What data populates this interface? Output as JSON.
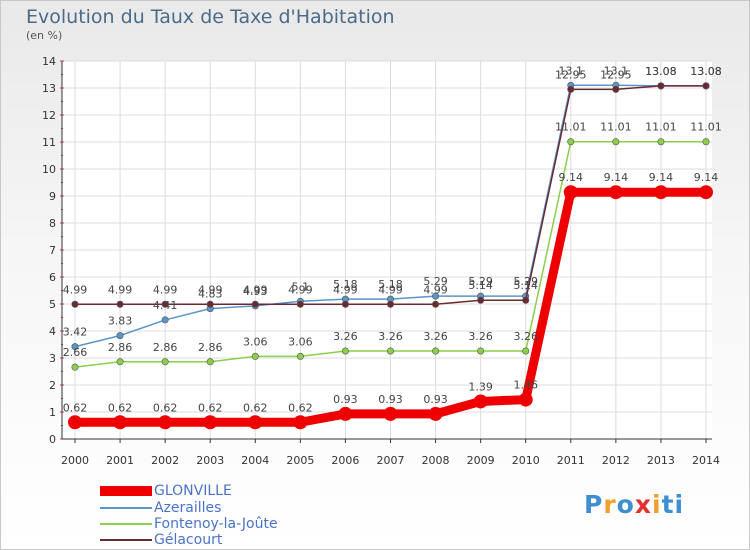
{
  "title": "Evolution du Taux de Taxe d'Habitation",
  "subtitle": "(en %)",
  "brand": {
    "letters": [
      "P",
      "r",
      "o",
      "x",
      "i",
      "t",
      "i"
    ],
    "colors": [
      "#3f8fd0",
      "#f0a030",
      "#3f8fd0",
      "#e03030",
      "#f0a030",
      "#3f8fd0",
      "#3f8fd0"
    ]
  },
  "chart_data": {
    "type": "line",
    "title": "Evolution du Taux de Taxe d'Habitation",
    "ylabel": "(en %)",
    "xlabel": "",
    "categories": [
      "2000",
      "2001",
      "2002",
      "2003",
      "2004",
      "2005",
      "2006",
      "2007",
      "2008",
      "2009",
      "2010",
      "2011",
      "2012",
      "2013",
      "2014"
    ],
    "ylim": [
      0,
      14
    ],
    "yticks": [
      "0",
      "1",
      "2",
      "3",
      "4",
      "5",
      "6",
      "7",
      "8",
      "9",
      "10",
      "11",
      "12",
      "13",
      "14"
    ],
    "grid": true,
    "legend_position": "bottom-left",
    "series": [
      {
        "name": "GLONVILLE",
        "color": "#ee0000",
        "values": [
          0.62,
          0.62,
          0.62,
          0.62,
          0.62,
          0.62,
          0.93,
          0.93,
          0.93,
          1.39,
          1.46,
          9.14,
          9.14,
          9.14,
          9.14
        ],
        "labels": [
          "0.62",
          "0.62",
          "0.62",
          "0.62",
          "0.62",
          "0.62",
          "0.93",
          "0.93",
          "0.93",
          "1.39",
          "1.46",
          "9.14",
          "9.14",
          "9.14",
          "9.14"
        ]
      },
      {
        "name": "Azerailles",
        "color": "#5b95c8",
        "values": [
          3.42,
          3.83,
          4.41,
          4.83,
          4.93,
          5.1,
          5.18,
          5.18,
          5.29,
          5.29,
          5.29,
          13.1,
          13.1,
          13.08,
          13.08
        ],
        "labels": [
          "3.42",
          "3.83",
          "4.41",
          "4.83",
          "4.93",
          "5.1",
          "5.18",
          "5.18",
          "5.29",
          "5.29",
          "5.29",
          "13.1",
          "13.1",
          "13.08",
          "13.08"
        ]
      },
      {
        "name": "Fontenoy-la-Joûte",
        "color": "#8ccf4a",
        "values": [
          2.66,
          2.86,
          2.86,
          2.86,
          3.06,
          3.06,
          3.26,
          3.26,
          3.26,
          3.26,
          3.26,
          11.01,
          11.01,
          11.01,
          11.01
        ],
        "labels": [
          "2.66",
          "2.86",
          "2.86",
          "2.86",
          "3.06",
          "3.06",
          "3.26",
          "3.26",
          "3.26",
          "3.26",
          "3.26",
          "11.01",
          "11.01",
          "11.01",
          "11.01"
        ]
      },
      {
        "name": "Gélacourt",
        "color": "#6b2a32",
        "values": [
          4.99,
          4.99,
          4.99,
          4.99,
          4.99,
          4.99,
          4.99,
          4.99,
          4.99,
          5.14,
          5.14,
          12.95,
          12.95,
          13.08,
          13.08
        ],
        "labels": [
          "4.99",
          "4.99",
          "4.99",
          "4.99",
          "4.99",
          "4.99",
          "4.99",
          "4.99",
          "4.99",
          "5.14",
          "5.14",
          "12.95",
          "12.95",
          "13.08",
          "13.08"
        ]
      }
    ]
  }
}
